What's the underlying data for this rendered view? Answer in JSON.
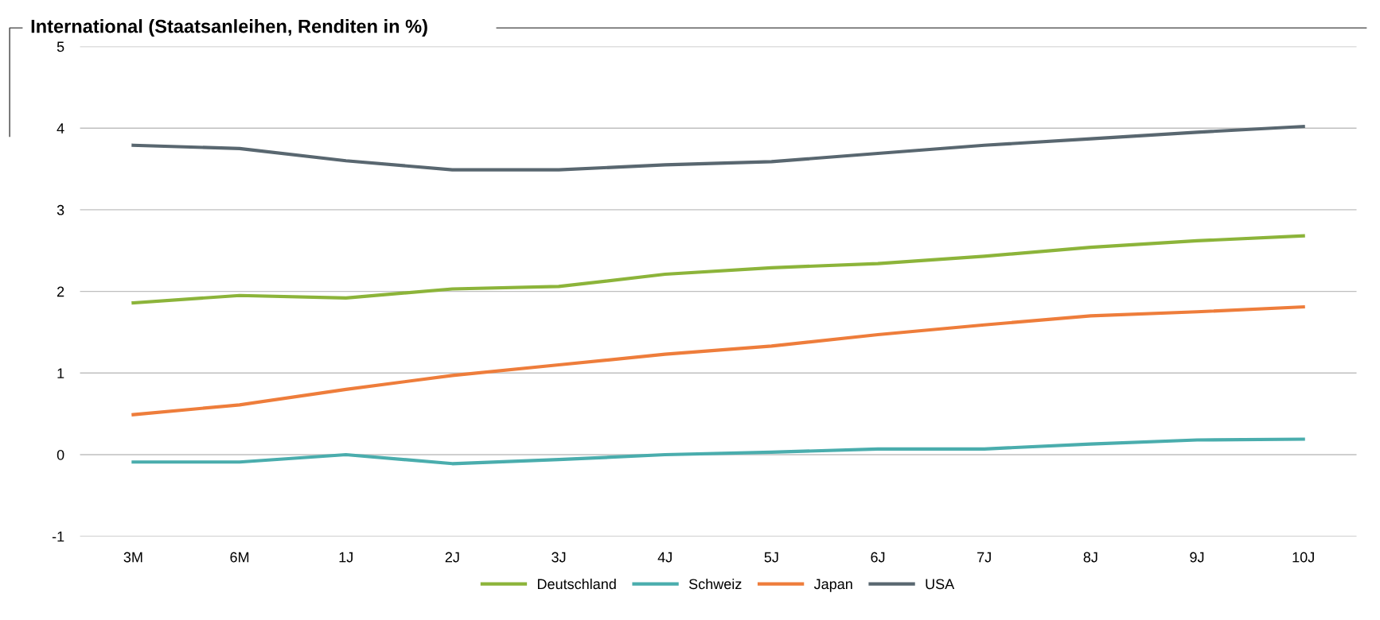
{
  "chart_data": {
    "type": "line",
    "title": "International (Staatsanleihen, Renditen in %)",
    "categories": [
      "3M",
      "6M",
      "1J",
      "2J",
      "3J",
      "4J",
      "5J",
      "6J",
      "7J",
      "8J",
      "9J",
      "10J"
    ],
    "series": [
      {
        "name": "Deutschland",
        "color": "#8cb43a",
        "values": [
          1.86,
          1.95,
          1.92,
          2.03,
          2.06,
          2.21,
          2.29,
          2.34,
          2.43,
          2.54,
          2.62,
          2.68
        ]
      },
      {
        "name": "Schweiz",
        "color": "#4aadad",
        "values": [
          -0.09,
          -0.09,
          0.0,
          -0.11,
          -0.06,
          0.0,
          0.03,
          0.07,
          0.07,
          0.13,
          0.18,
          0.19
        ]
      },
      {
        "name": "Japan",
        "color": "#ee7d3b",
        "values": [
          0.49,
          0.61,
          0.8,
          0.97,
          1.1,
          1.23,
          1.33,
          1.47,
          1.59,
          1.7,
          1.75,
          1.81
        ]
      },
      {
        "name": "USA",
        "color": "#596770",
        "values": [
          3.79,
          3.75,
          3.6,
          3.49,
          3.49,
          3.55,
          3.59,
          3.69,
          3.79,
          3.87,
          3.95,
          4.02
        ]
      }
    ],
    "ylim": [
      -1,
      5
    ],
    "yticks": [
      -1,
      0,
      1,
      2,
      3,
      4,
      5
    ],
    "grid": "y",
    "legend": "bottom",
    "marker": "none",
    "line_style": "solid"
  }
}
